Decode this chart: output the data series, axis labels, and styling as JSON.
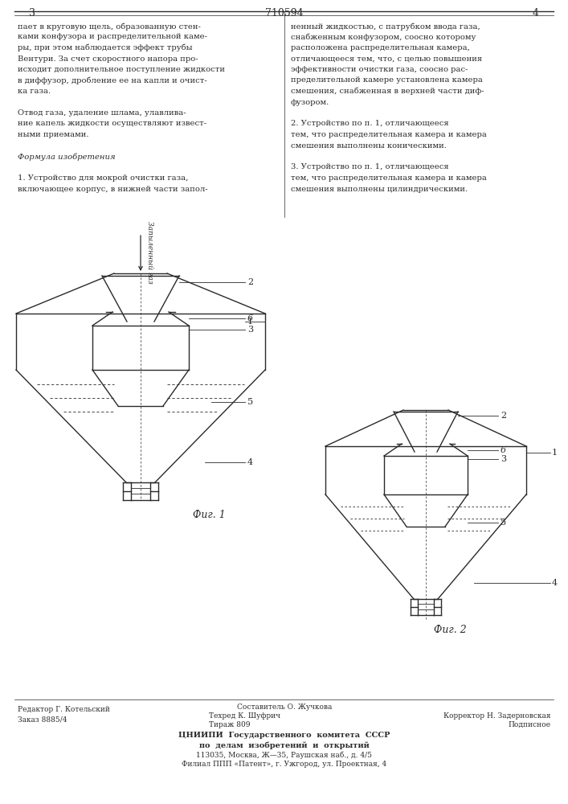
{
  "page_number_left": "3",
  "page_number_right": "4",
  "patent_number": "710594",
  "bg_color": "#ffffff",
  "text_color": "#1a1a1a",
  "left_column_text": [
    "пает в круговую щель, образованную стен-",
    "ками конфузора и распределительной каме-",
    "ры, при этом наблюдается эффект трубы",
    "Вентури. За счет скоростного напора про-",
    "исходит дополнительное поступление жидкости",
    "в диффузор, дробление ее на капли и очист-",
    "ка газа.",
    "",
    "Отвод газа, удаление шлама, улавлива-",
    "ние капель жидкости осуществляют извест-",
    "ными приемами.",
    "",
    "Формула изобретения",
    "",
    "1. Устройство для мокрой очистки газа,",
    "включающее корпус, в нижней части запол-"
  ],
  "right_column_text": [
    "ненный жидкостью, с патрубком ввода газа,",
    "снабженным конфузором, соосно которому",
    "расположена распределительная камера,",
    "отличающееся тем, что, с целью повышения",
    "эффективности очистки газа, соосно рас-",
    "пределительной камере установлена камера",
    "смешения, снабженная в верхней части диф-",
    "фузором.",
    "",
    "2. Устройство по п. 1, отличающееся",
    "тем, что распределительная камера и камера",
    "смешения выполнены коническими.",
    "",
    "3. Устройство по п. 1, отличающееся",
    "тем, что распределительная камера и камера",
    "смешения выполнены цилиндрическими."
  ],
  "bottom_text_left_col1": "Редактор Г. Котельский",
  "bottom_text_left_col2": "Заказ 8885/4",
  "bottom_text_center1": "Составитель О. Жучкова",
  "bottom_text_center2": "Техред К. Шуфрич",
  "bottom_text_center3": "Тираж 809",
  "bottom_text_right1": "Корректор Н. Задерновская",
  "bottom_text_right2": "Подписное",
  "bottom_institute1": "ЦНИИПИ  Государственного  комитета  СССР",
  "bottom_institute2": "по  делам  изобретений  и  открытий",
  "bottom_address1": "113035, Москва, Ж—35, Раушская наб., д. 4/5",
  "bottom_address2": "Филиал ППП «Патент», г. Ужгород, ул. Проектная, 4",
  "fig1_label": "Фиг. 1",
  "fig2_label": "Фиг. 2",
  "gas_inlet_label": "Запыленный газ"
}
